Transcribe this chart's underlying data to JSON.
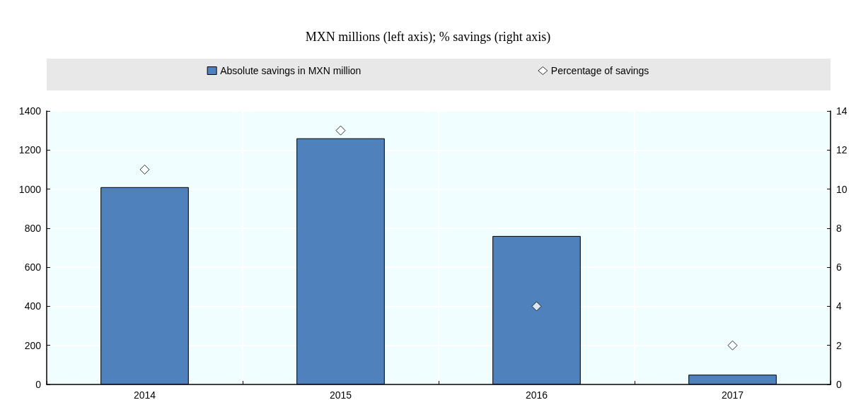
{
  "chart_data": {
    "type": "bar",
    "title": "MXN millions (left axis); % savings (right axis)",
    "categories": [
      "2014",
      "2015",
      "2016",
      "2017"
    ],
    "series": [
      {
        "name": "Absolute savings in MXN million",
        "color": "#4f81bd",
        "values": [
          1010,
          1260,
          760,
          50
        ]
      },
      {
        "name": "Percentage of savings",
        "type": "scatter",
        "axis": "y2",
        "color": "#ffffff",
        "marker": "diamond",
        "values": [
          11,
          13,
          4,
          2
        ]
      }
    ],
    "ylim": [
      0,
      1400
    ],
    "yticks": [
      0,
      200,
      400,
      600,
      800,
      1000,
      1200,
      1400
    ],
    "y2lim": [
      0,
      14
    ],
    "y2ticks": [
      0,
      2,
      4,
      6,
      8,
      10,
      12,
      14
    ],
    "grid": true,
    "legend": "top"
  }
}
